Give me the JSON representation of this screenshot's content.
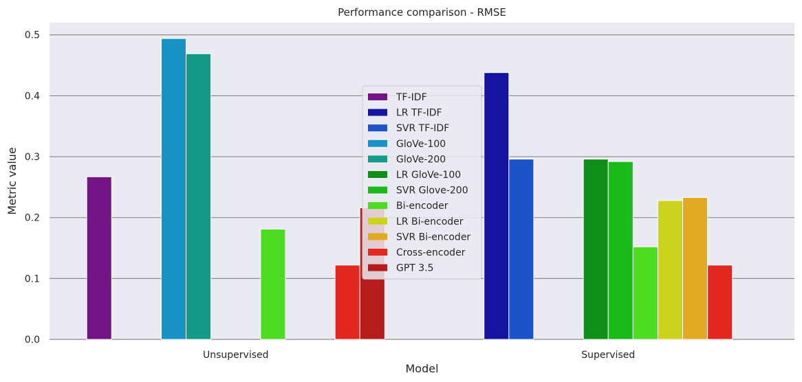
{
  "chart_data": {
    "type": "bar",
    "title": "Performance comparison - RMSE",
    "xlabel": "Model",
    "ylabel": "Metric value",
    "ylim": [
      0,
      0.52
    ],
    "yticks": [
      "0.0",
      "0.1",
      "0.2",
      "0.3",
      "0.4",
      "0.5"
    ],
    "grid": true,
    "legend_position": "center",
    "categories": [
      "Unsupervised",
      "Supervised"
    ],
    "series": [
      {
        "name": "TF-IDF",
        "color": "#751585",
        "values": [
          0.267,
          null
        ]
      },
      {
        "name": "LR TF-IDF",
        "color": "#1414a0",
        "values": [
          null,
          0.438
        ]
      },
      {
        "name": "SVR TF-IDF",
        "color": "#1d52c9",
        "values": [
          null,
          0.296
        ]
      },
      {
        "name": "GloVe-100",
        "color": "#1992c5",
        "values": [
          0.494,
          null
        ]
      },
      {
        "name": "GloVe-200",
        "color": "#139a88",
        "values": [
          0.469,
          null
        ]
      },
      {
        "name": "LR GloVe-100",
        "color": "#108f18",
        "values": [
          null,
          0.296
        ]
      },
      {
        "name": "SVR Glove-200",
        "color": "#1aba1a",
        "values": [
          null,
          0.292
        ]
      },
      {
        "name": "Bi-encoder",
        "color": "#4ddc22",
        "values": [
          0.181,
          0.152
        ]
      },
      {
        "name": "LR Bi-encoder",
        "color": "#cdd31c",
        "values": [
          null,
          0.228
        ]
      },
      {
        "name": "SVR Bi-encoder",
        "color": "#e2aa22",
        "values": [
          null,
          0.233
        ]
      },
      {
        "name": "Cross-encoder",
        "color": "#e2281f",
        "values": [
          0.122,
          0.122
        ]
      },
      {
        "name": "GPT 3.5",
        "color": "#b51c1c",
        "values": [
          0.216,
          null
        ]
      }
    ]
  }
}
